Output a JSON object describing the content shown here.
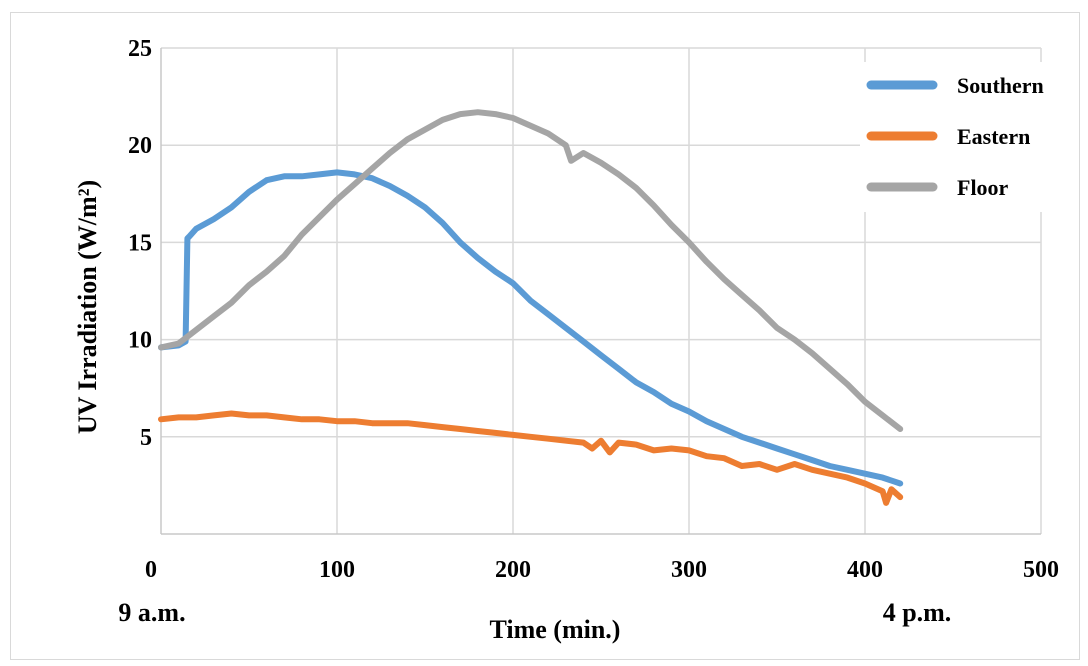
{
  "chart_data": {
    "type": "line",
    "title": "",
    "xlabel": "Time (min.)",
    "ylabel": "UV Irradiation (W/m²)",
    "xlim": [
      0,
      500
    ],
    "ylim": [
      0,
      25
    ],
    "x_ticks": [
      0,
      100,
      200,
      300,
      400,
      500
    ],
    "y_ticks": [
      5,
      10,
      15,
      20,
      25
    ],
    "grid": true,
    "legend_position": "top-right",
    "annotations": [
      {
        "label": "9 a.m.",
        "at_x": 0
      },
      {
        "label": "4 p.m.",
        "at_x": 420
      }
    ],
    "series": [
      {
        "name": "Southern",
        "color": "#5b9bd5",
        "x": [
          0,
          10,
          14,
          15,
          16,
          20,
          30,
          40,
          50,
          60,
          70,
          80,
          90,
          100,
          110,
          120,
          130,
          140,
          150,
          160,
          170,
          180,
          190,
          200,
          210,
          220,
          230,
          240,
          250,
          260,
          270,
          280,
          290,
          300,
          310,
          320,
          330,
          340,
          350,
          360,
          370,
          380,
          390,
          400,
          410,
          420
        ],
        "y": [
          9.6,
          9.7,
          9.9,
          15.2,
          15.3,
          15.7,
          16.2,
          16.8,
          17.6,
          18.2,
          18.4,
          18.4,
          18.5,
          18.6,
          18.5,
          18.3,
          17.9,
          17.4,
          16.8,
          16.0,
          15.0,
          14.2,
          13.5,
          12.9,
          12.0,
          11.3,
          10.6,
          9.9,
          9.2,
          8.5,
          7.8,
          7.3,
          6.7,
          6.3,
          5.8,
          5.4,
          5.0,
          4.7,
          4.4,
          4.1,
          3.8,
          3.5,
          3.3,
          3.1,
          2.9,
          2.6
        ]
      },
      {
        "name": "Eastern",
        "color": "#ed7d31",
        "x": [
          0,
          10,
          20,
          30,
          40,
          50,
          60,
          70,
          80,
          90,
          100,
          110,
          120,
          130,
          140,
          150,
          160,
          170,
          180,
          190,
          200,
          210,
          220,
          230,
          240,
          245,
          250,
          255,
          260,
          270,
          280,
          290,
          300,
          310,
          320,
          330,
          340,
          350,
          360,
          370,
          380,
          390,
          400,
          410,
          412,
          415,
          420
        ],
        "y": [
          5.9,
          6.0,
          6.0,
          6.1,
          6.2,
          6.1,
          6.1,
          6.0,
          5.9,
          5.9,
          5.8,
          5.8,
          5.7,
          5.7,
          5.7,
          5.6,
          5.5,
          5.4,
          5.3,
          5.2,
          5.1,
          5.0,
          4.9,
          4.8,
          4.7,
          4.4,
          4.8,
          4.2,
          4.7,
          4.6,
          4.3,
          4.4,
          4.3,
          4.0,
          3.9,
          3.5,
          3.6,
          3.3,
          3.6,
          3.3,
          3.1,
          2.9,
          2.6,
          2.2,
          1.6,
          2.3,
          1.9
        ]
      },
      {
        "name": "Floor",
        "color": "#a5a5a5",
        "x": [
          0,
          10,
          20,
          30,
          40,
          50,
          60,
          70,
          80,
          90,
          100,
          110,
          120,
          130,
          140,
          150,
          160,
          170,
          180,
          190,
          200,
          210,
          220,
          230,
          233,
          240,
          250,
          260,
          270,
          280,
          290,
          300,
          310,
          320,
          330,
          340,
          350,
          360,
          370,
          380,
          390,
          400,
          410,
          420
        ],
        "y": [
          9.6,
          9.8,
          10.5,
          11.2,
          11.9,
          12.8,
          13.5,
          14.3,
          15.4,
          16.3,
          17.2,
          18.0,
          18.8,
          19.6,
          20.3,
          20.8,
          21.3,
          21.6,
          21.7,
          21.6,
          21.4,
          21.0,
          20.6,
          20.0,
          19.2,
          19.6,
          19.1,
          18.5,
          17.8,
          16.9,
          15.9,
          15.0,
          14.0,
          13.1,
          12.3,
          11.5,
          10.6,
          10.0,
          9.3,
          8.5,
          7.7,
          6.8,
          6.1,
          5.4
        ]
      }
    ]
  }
}
